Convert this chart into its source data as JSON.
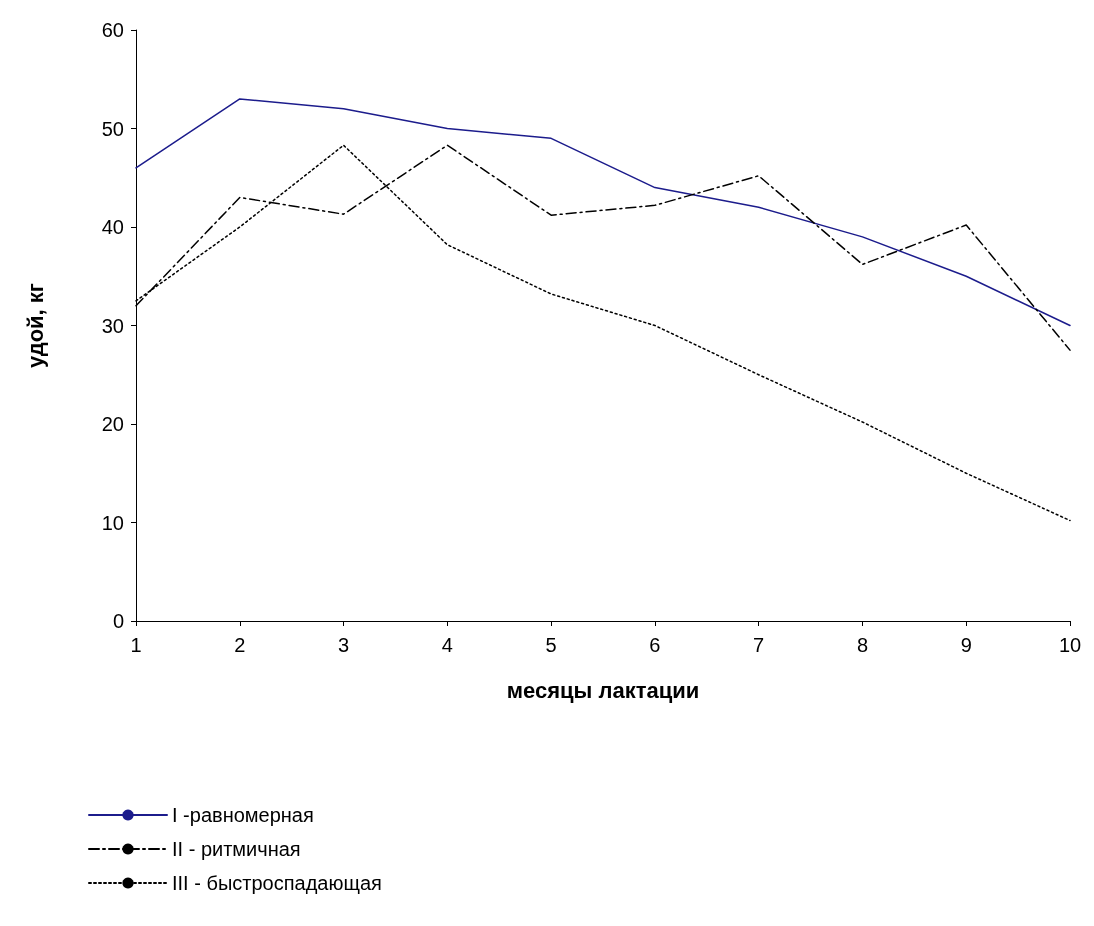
{
  "chart_data": {
    "type": "line",
    "xlabel": "месяцы лактации",
    "ylabel": "удой, кг",
    "x": [
      1,
      2,
      3,
      4,
      5,
      6,
      7,
      8,
      9,
      10
    ],
    "xlim": [
      1,
      10
    ],
    "xticks": [
      1,
      2,
      3,
      4,
      5,
      6,
      7,
      8,
      9,
      10
    ],
    "ylim": [
      0,
      60
    ],
    "yticks": [
      0,
      10,
      20,
      30,
      40,
      50,
      60
    ],
    "grid": false,
    "legend": "bottom left",
    "marker": "none",
    "series": [
      {
        "name": "I -равномерная",
        "color": "#1c1c8c",
        "line_style": "solid",
        "values": [
          46,
          53,
          52,
          50,
          49,
          44,
          42,
          39,
          35,
          30
        ]
      },
      {
        "name": "II - ритмичная",
        "color": "#000000",
        "line_style": "dashed",
        "values": [
          32,
          43,
          41.3,
          48.3,
          41.2,
          42.2,
          45.2,
          36.2,
          40.2,
          27.5
        ]
      },
      {
        "name": "III - быстроспадающая",
        "color": "#000000",
        "line_style": "dotted",
        "values": [
          32.5,
          40,
          48.3,
          38.2,
          33.2,
          30,
          25,
          20.2,
          15,
          10.2
        ]
      }
    ]
  }
}
